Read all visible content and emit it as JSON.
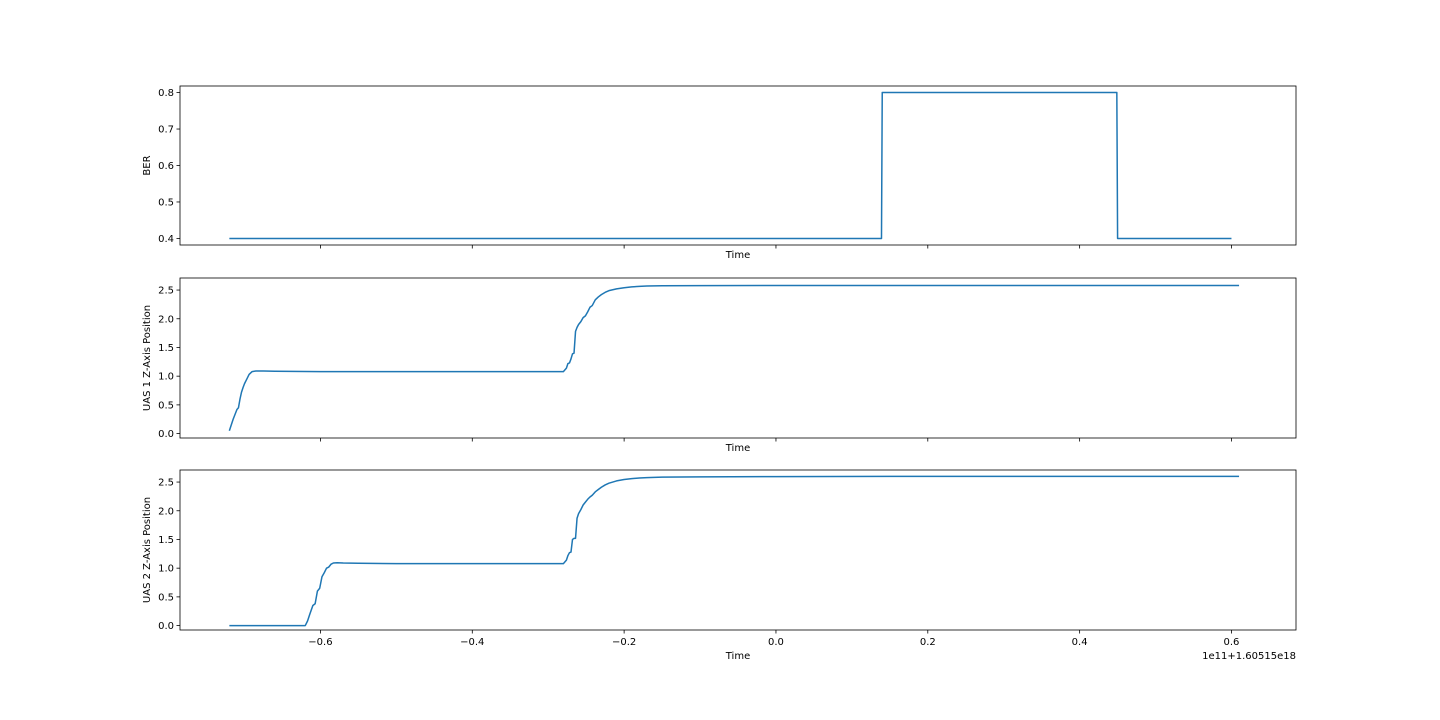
{
  "chart_data": [
    {
      "type": "line",
      "id": "ber",
      "xlabel": "Time",
      "ylabel": "BER",
      "xlim": [
        -0.785,
        0.685
      ],
      "ylim": [
        0.382,
        0.818
      ],
      "yticks": [
        0.4,
        0.5,
        0.6,
        0.7,
        0.8
      ],
      "ytick_labels": [
        "0.4",
        "0.5",
        "0.6",
        "0.7",
        "0.8"
      ],
      "xticks": [
        -0.6,
        -0.4,
        -0.2,
        0.0,
        0.2,
        0.4,
        0.6
      ],
      "show_xtick_labels": false,
      "grid": false,
      "color": "#1f77b4",
      "series": [
        {
          "x": [
            -0.72,
            0.139,
            0.14,
            0.449,
            0.45,
            0.6
          ],
          "y": [
            0.4,
            0.4,
            0.8,
            0.8,
            0.4,
            0.4
          ]
        }
      ]
    },
    {
      "type": "line",
      "id": "uas1",
      "xlabel": "Time",
      "ylabel": "UAS 1 Z-Axis Position",
      "xlim": [
        -0.785,
        0.685
      ],
      "ylim": [
        -0.077,
        2.71
      ],
      "yticks": [
        0.0,
        0.5,
        1.0,
        1.5,
        2.0,
        2.5
      ],
      "ytick_labels": [
        "0.0",
        "0.5",
        "1.0",
        "1.5",
        "2.0",
        "2.5"
      ],
      "xticks": [
        -0.6,
        -0.4,
        -0.2,
        0.0,
        0.2,
        0.4,
        0.6
      ],
      "show_xtick_labels": false,
      "grid": false,
      "color": "#1f77b4",
      "series": [
        {
          "x": [
            -0.72,
            -0.715,
            -0.71,
            -0.708,
            -0.706,
            -0.704,
            -0.702,
            -0.7,
            -0.697,
            -0.694,
            -0.69,
            -0.685,
            -0.675,
            -0.66,
            -0.6,
            -0.5,
            -0.4,
            -0.3,
            -0.28,
            -0.276,
            -0.274,
            -0.272,
            -0.27,
            -0.268,
            -0.266,
            -0.264,
            -0.262,
            -0.26,
            -0.257,
            -0.254,
            -0.251,
            -0.248,
            -0.245,
            -0.242,
            -0.238,
            -0.234,
            -0.23,
            -0.225,
            -0.22,
            -0.21,
            -0.2,
            -0.19,
            -0.18,
            -0.17,
            -0.15,
            -0.1,
            0.0,
            0.2,
            0.4,
            0.61
          ],
          "y": [
            0.05,
            0.25,
            0.42,
            0.45,
            0.6,
            0.72,
            0.8,
            0.87,
            0.95,
            1.03,
            1.08,
            1.09,
            1.09,
            1.085,
            1.08,
            1.08,
            1.08,
            1.08,
            1.08,
            1.14,
            1.22,
            1.23,
            1.3,
            1.39,
            1.4,
            1.78,
            1.85,
            1.9,
            1.95,
            2.02,
            2.05,
            2.12,
            2.2,
            2.23,
            2.33,
            2.38,
            2.42,
            2.46,
            2.49,
            2.52,
            2.54,
            2.555,
            2.565,
            2.57,
            2.575,
            2.578,
            2.58,
            2.58,
            2.58,
            2.58
          ]
        }
      ]
    },
    {
      "type": "line",
      "id": "uas2",
      "xlabel": "Time",
      "ylabel": "UAS 2 Z-Axis Position",
      "xlim": [
        -0.785,
        0.685
      ],
      "ylim": [
        -0.077,
        2.71
      ],
      "yticks": [
        0.0,
        0.5,
        1.0,
        1.5,
        2.0,
        2.5
      ],
      "ytick_labels": [
        "0.0",
        "0.5",
        "1.0",
        "1.5",
        "2.0",
        "2.5"
      ],
      "xticks": [
        -0.6,
        -0.4,
        -0.2,
        0.0,
        0.2,
        0.4,
        0.6
      ],
      "xtick_labels": [
        "−0.6",
        "−0.4",
        "−0.2",
        "0.0",
        "0.2",
        "0.4",
        "0.6"
      ],
      "show_xtick_labels": true,
      "offset_text": "1e11+1.60515e18",
      "grid": false,
      "color": "#1f77b4",
      "series": [
        {
          "x": [
            -0.72,
            -0.65,
            -0.62,
            -0.617,
            -0.614,
            -0.61,
            -0.607,
            -0.604,
            -0.601,
            -0.598,
            -0.595,
            -0.592,
            -0.589,
            -0.586,
            -0.583,
            -0.578,
            -0.57,
            -0.55,
            -0.5,
            -0.4,
            -0.3,
            -0.28,
            -0.276,
            -0.274,
            -0.272,
            -0.27,
            -0.268,
            -0.266,
            -0.264,
            -0.262,
            -0.26,
            -0.257,
            -0.254,
            -0.251,
            -0.248,
            -0.245,
            -0.242,
            -0.238,
            -0.234,
            -0.23,
            -0.225,
            -0.22,
            -0.21,
            -0.2,
            -0.19,
            -0.18,
            -0.17,
            -0.15,
            -0.1,
            0.0,
            0.2,
            0.4,
            0.61
          ],
          "y": [
            0.0,
            0.0,
            0.0,
            0.08,
            0.2,
            0.35,
            0.38,
            0.6,
            0.65,
            0.85,
            0.92,
            1.0,
            1.02,
            1.07,
            1.09,
            1.095,
            1.09,
            1.085,
            1.08,
            1.08,
            1.08,
            1.08,
            1.14,
            1.22,
            1.27,
            1.28,
            1.5,
            1.52,
            1.52,
            1.87,
            1.95,
            2.02,
            2.1,
            2.15,
            2.2,
            2.24,
            2.27,
            2.33,
            2.37,
            2.41,
            2.45,
            2.48,
            2.52,
            2.545,
            2.56,
            2.57,
            2.578,
            2.585,
            2.59,
            2.595,
            2.6,
            2.6,
            2.6
          ]
        }
      ]
    }
  ]
}
